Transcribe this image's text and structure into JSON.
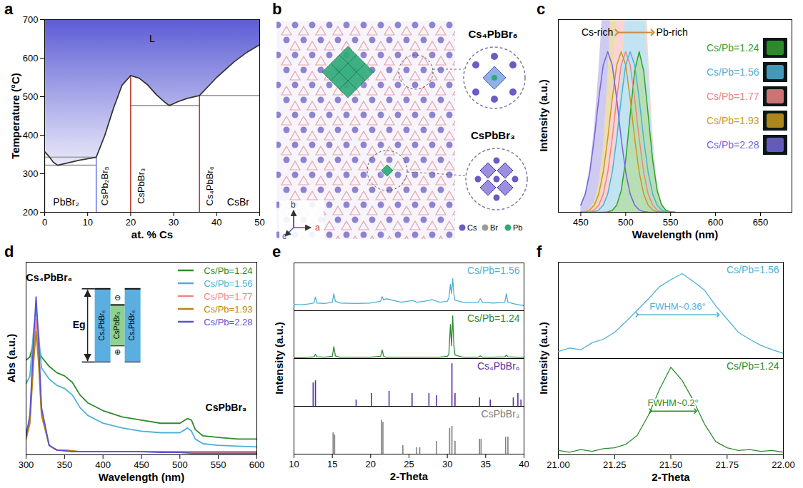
{
  "chart_data": [
    {
      "panel_label": "a",
      "type": "line",
      "xlabel": "at. % Cs",
      "ylabel": "Temperature (°C)",
      "xlim": [
        0,
        50
      ],
      "ylim": [
        200,
        700
      ],
      "xticks": [
        0,
        10,
        20,
        30,
        40,
        50
      ],
      "yticks": [
        200,
        300,
        400,
        500,
        600,
        700
      ],
      "color": "#333333",
      "liquidus": {
        "x": [
          0,
          1,
          2,
          3,
          5,
          8,
          12,
          14,
          16,
          18,
          20,
          22,
          24,
          26,
          28,
          29,
          31,
          33,
          36,
          40,
          44,
          47,
          50
        ],
        "y": [
          357,
          345,
          330,
          322,
          327,
          335,
          343,
          400,
          470,
          530,
          555,
          548,
          530,
          505,
          485,
          477,
          487,
          495,
          503,
          550,
          590,
          615,
          635
        ]
      },
      "lines": [
        {
          "x": [
            0,
            12
          ],
          "y": [
            343,
            343
          ],
          "color": "#9e9e9e"
        },
        {
          "x": [
            0,
            12
          ],
          "y": [
            322,
            322
          ],
          "color": "#9e9e9e"
        },
        {
          "x": [
            20,
            36
          ],
          "y": [
            477,
            477
          ],
          "color": "#9e9e9e"
        },
        {
          "x": [
            36,
            50
          ],
          "y": [
            503,
            503
          ],
          "color": "#9e9e9e"
        },
        {
          "x": [
            12,
            12
          ],
          "y": [
            200,
            343
          ],
          "color": "#6f7fe0"
        },
        {
          "x": [
            0,
            0
          ],
          "y": [
            200,
            357
          ],
          "color": "#6f7fe0"
        },
        {
          "x": [
            20,
            20
          ],
          "y": [
            200,
            555
          ],
          "color": "#c0392b"
        },
        {
          "x": [
            36,
            36
          ],
          "y": [
            200,
            503
          ],
          "color": "#c0392b"
        }
      ],
      "annotations": [
        {
          "text": "L",
          "x": 25,
          "y": 650
        },
        {
          "text": "PbBr₂",
          "x": 5,
          "y": 225
        },
        {
          "text": "CsBr",
          "x": 45,
          "y": 225
        }
      ],
      "rotated_annotations": [
        {
          "text": "CsPb₂Br₅",
          "x": 14,
          "y": 268
        },
        {
          "text": "CsPbBr₃",
          "x": 22.5,
          "y": 268
        },
        {
          "text": "Cs₄PbBr₆",
          "x": 38.5,
          "y": 268
        }
      ]
    },
    {
      "panel_label": "c",
      "type": "area",
      "xlabel": "Wavelength (nm)",
      "ylabel": "Intensity (a.u.)",
      "xlim": [
        425,
        685
      ],
      "ylim": [
        0,
        1.2
      ],
      "xticks": [
        450,
        500,
        550,
        600,
        650
      ],
      "tick_labels": "x",
      "legend": "top-right",
      "x": [
        450,
        455,
        460,
        465,
        470,
        475,
        480,
        485,
        490,
        495,
        500,
        505,
        510,
        515,
        520,
        525,
        530,
        535,
        540,
        545,
        550,
        555
      ],
      "series": [
        {
          "name": "Cs/Pb=1.24",
          "color": "#33a02c",
          "values": [
            0,
            0,
            0,
            0,
            0,
            0,
            0.002,
            0.011,
            0.044,
            0.135,
            0.325,
            0.607,
            0.882,
            1,
            0.882,
            0.607,
            0.325,
            0.135,
            0.044,
            0.011,
            0.002,
            0
          ]
        },
        {
          "name": "Cs/Pb=1.56",
          "color": "#4fb0d6",
          "values": [
            0,
            0,
            0.001,
            0.004,
            0.014,
            0.044,
            0.114,
            0.249,
            0.458,
            0.707,
            0.917,
            1,
            0.917,
            0.707,
            0.458,
            0.249,
            0.114,
            0.044,
            0.014,
            0.004,
            0.001,
            0
          ]
        },
        {
          "name": "Cs/Pb=1.77",
          "color": "#ef8585",
          "values": [
            0,
            0.001,
            0.004,
            0.014,
            0.044,
            0.114,
            0.249,
            0.458,
            0.707,
            0.917,
            1,
            0.917,
            0.707,
            0.458,
            0.249,
            0.114,
            0.044,
            0.014,
            0.004,
            0.001,
            0,
            0
          ]
        },
        {
          "name": "Cs/Pb=1.93",
          "color": "#c99a1e",
          "values": [
            0.001,
            0.004,
            0.014,
            0.044,
            0.114,
            0.249,
            0.458,
            0.707,
            0.917,
            1,
            0.917,
            0.707,
            0.458,
            0.249,
            0.114,
            0.044,
            0.014,
            0.004,
            0.001,
            0,
            0,
            0
          ]
        },
        {
          "name": "Cs/Pb=2.28",
          "color": "#7466d8",
          "values": [
            0.044,
            0.114,
            0.249,
            0.458,
            0.707,
            0.917,
            1,
            0.917,
            0.707,
            0.458,
            0.249,
            0.114,
            0.044,
            0.014,
            0.004,
            0.001,
            0,
            0,
            0,
            0,
            0,
            0
          ]
        }
      ],
      "annotations": [
        {
          "text": "Cs-rich",
          "x": 490,
          "y": 1.12
        },
        {
          "text": "Pb-rich",
          "x": 530,
          "y": 1.12
        }
      ]
    },
    {
      "panel_label": "d",
      "type": "line",
      "xlabel": "Wavelength (nm)",
      "ylabel": "Abs (a.u.)",
      "xlim": [
        300,
        600
      ],
      "ylim": [
        0,
        1.22
      ],
      "xticks": [
        300,
        350,
        400,
        450,
        500,
        550,
        600
      ],
      "tick_labels": "x",
      "legend": "top-right",
      "x": [
        300,
        305,
        310,
        313,
        316,
        320,
        330,
        340,
        350,
        360,
        370,
        380,
        400,
        425,
        450,
        475,
        500,
        510,
        515,
        520,
        530,
        550,
        575,
        600
      ],
      "series": [
        {
          "name": "Cs/Pb=1.24",
          "color": "#2e8b2e",
          "values": [
            0.6,
            0.62,
            0.72,
            0.76,
            0.68,
            0.62,
            0.56,
            0.52,
            0.5,
            0.46,
            0.38,
            0.33,
            0.28,
            0.24,
            0.22,
            0.2,
            0.2,
            0.23,
            0.22,
            0.16,
            0.12,
            0.11,
            0.1,
            0.1
          ]
        },
        {
          "name": "Cs/Pb=1.56",
          "color": "#4fb0d6",
          "values": [
            0.45,
            0.5,
            0.8,
            0.92,
            0.78,
            0.55,
            0.48,
            0.44,
            0.42,
            0.38,
            0.3,
            0.25,
            0.2,
            0.17,
            0.15,
            0.14,
            0.14,
            0.17,
            0.15,
            0.1,
            0.07,
            0.06,
            0.055,
            0.05
          ]
        },
        {
          "name": "Cs/Pb=1.77",
          "color": "#ef8585",
          "values": [
            0.1,
            0.22,
            0.65,
            0.86,
            0.65,
            0.27,
            0.06,
            0.03,
            0.03,
            0.025,
            0.02,
            0.02,
            0.02,
            0.02,
            0.02,
            0.02,
            0.015,
            0.015,
            0.015,
            0.015,
            0.015,
            0.015,
            0.015,
            0.015
          ]
        },
        {
          "name": "Cs/Pb=1.93",
          "color": "#b8860b",
          "values": [
            0.1,
            0.2,
            0.6,
            0.78,
            0.6,
            0.25,
            0.06,
            0.03,
            0.03,
            0.025,
            0.02,
            0.02,
            0.02,
            0.02,
            0.02,
            0.02,
            0.02,
            0.02,
            0.02,
            0.02,
            0.02,
            0.02,
            0.02,
            0.02
          ]
        },
        {
          "name": "Cs/Pb=2.28",
          "color": "#5b50d6",
          "values": [
            0.12,
            0.25,
            0.75,
            1.0,
            0.75,
            0.3,
            0.06,
            0.03,
            0.025,
            0.02,
            0.02,
            0.02,
            0.02,
            0.02,
            0.02,
            0.015,
            0.015,
            0.012,
            0.01,
            0.01,
            0.01,
            0.01,
            0.01,
            0.01
          ]
        }
      ],
      "annotations": [
        {
          "text": "Cs₄PbBr₆",
          "x": 330,
          "y": 1.12
        },
        {
          "text": "CsPbBr₃",
          "x": 560,
          "y": 0.3
        }
      ],
      "inset": {
        "labels": [
          "Cs₄PbBr₆",
          "CsPbBr₃",
          "Cs₄PbBr₆"
        ],
        "energy_label": "Eg",
        "electron": "⊖",
        "hole": "⊕"
      }
    },
    {
      "panel_label": "e",
      "type": "line",
      "xlabel": "2-Theta",
      "ylabel": "Intensity (a.u.)",
      "xlim": [
        10,
        40
      ],
      "ylim": [
        0,
        1.12
      ],
      "xticks": [
        10,
        15,
        20,
        25,
        30,
        35,
        40
      ],
      "tick_labels": "x",
      "series": [
        {
          "name": "Cs/Pb=1.56",
          "color": "#4fb0d6",
          "type": "line",
          "x": [
            10,
            11,
            12,
            12.6,
            12.8,
            13,
            14,
            15,
            15.2,
            15.4,
            16,
            18,
            20,
            21.3,
            21.5,
            21.7,
            22,
            24,
            25.5,
            26,
            27,
            28,
            29,
            30,
            30.2,
            30.4,
            30.55,
            30.7,
            30.85,
            31,
            32,
            34,
            34.3,
            34.6,
            36,
            37.5,
            37.7,
            37.9,
            39,
            40
          ],
          "values": [
            0.15,
            0.14,
            0.16,
            0.18,
            0.32,
            0.18,
            0.17,
            0.2,
            0.4,
            0.22,
            0.18,
            0.17,
            0.18,
            0.22,
            0.33,
            0.25,
            0.28,
            0.2,
            0.24,
            0.2,
            0.22,
            0.26,
            0.2,
            0.22,
            0.3,
            0.62,
            0.4,
            0.75,
            0.38,
            0.25,
            0.2,
            0.2,
            0.28,
            0.2,
            0.18,
            0.2,
            0.4,
            0.2,
            0.15,
            0.12
          ]
        },
        {
          "name": "Cs/Pb=1.24",
          "color": "#2e8b2e",
          "type": "line",
          "x": [
            10,
            11,
            12,
            12.6,
            12.8,
            13,
            14,
            15,
            15.2,
            15.4,
            16,
            18,
            20,
            21.3,
            21.5,
            21.7,
            22,
            24,
            25.5,
            26,
            27,
            28,
            29,
            30,
            30.2,
            30.4,
            30.55,
            30.7,
            30.85,
            31,
            32,
            34,
            34.3,
            34.6,
            36,
            37.5,
            37.7,
            37.9,
            39,
            40
          ],
          "values": [
            0.02,
            0.02,
            0.03,
            0.04,
            0.1,
            0.04,
            0.03,
            0.05,
            0.28,
            0.06,
            0.03,
            0.03,
            0.03,
            0.05,
            0.2,
            0.05,
            0.03,
            0.03,
            0.03,
            0.03,
            0.03,
            0.03,
            0.03,
            0.05,
            0.1,
            0.8,
            0.3,
            1,
            0.3,
            0.08,
            0.03,
            0.03,
            0.06,
            0.03,
            0.03,
            0.04,
            0.08,
            0.04,
            0.03,
            0.03
          ]
        },
        {
          "name": "Cs₄PbBr₆",
          "color": "#5b2c9e",
          "type": "bar",
          "x": [
            12.5,
            12.8,
            18.1,
            20.1,
            22.4,
            25.4,
            27.6,
            28.6,
            30.6,
            31,
            34.2,
            35.6,
            38.6,
            39.2,
            39.6
          ],
          "values": [
            0.55,
            0.6,
            0.15,
            0.3,
            0.35,
            0.3,
            0.3,
            0.25,
            1,
            0.3,
            0.2,
            0.15,
            0.2,
            0.3,
            0.15
          ]
        },
        {
          "name": "CsPbBr₃",
          "color": "#808080",
          "type": "bar",
          "x": [
            15.1,
            15.3,
            21.4,
            21.6,
            24.2,
            26,
            26.4,
            28.6,
            30.3,
            30.6,
            31,
            34.2,
            34.4,
            37.6,
            37.9
          ],
          "values": [
            0.5,
            0.45,
            0.8,
            0.75,
            0.2,
            0.15,
            0.15,
            0.3,
            0.6,
            0.65,
            0.3,
            0.35,
            0.35,
            0.4,
            0.4
          ]
        }
      ]
    },
    {
      "panel_label": "f",
      "type": "line",
      "xlabel": "2-Theta",
      "ylabel": "Intensity (a.u.)",
      "xlim": [
        21,
        22
      ],
      "ylim": [
        0,
        1.1
      ],
      "xticks": [
        {
          "value": 21,
          "label": "21.00"
        },
        21.25,
        {
          "value": 21.5,
          "label": "21.50"
        },
        21.75,
        {
          "value": 22,
          "label": "22.00"
        }
      ],
      "tick_labels": "x",
      "series": [
        {
          "name": "Cs/Pb=1.56",
          "color": "#4fb0d6",
          "type": "line",
          "x": [
            21,
            21.05,
            21.1,
            21.15,
            21.2,
            21.25,
            21.3,
            21.35,
            21.4,
            21.45,
            21.5,
            21.55,
            21.6,
            21.65,
            21.7,
            21.75,
            21.8,
            21.85,
            21.9,
            21.95,
            22
          ],
          "values": [
            0.08,
            0.12,
            0.1,
            0.18,
            0.22,
            0.3,
            0.42,
            0.55,
            0.68,
            0.82,
            0.9,
            0.97,
            0.88,
            0.78,
            0.6,
            0.45,
            0.3,
            0.22,
            0.15,
            0.1,
            0.06
          ],
          "fwhm": {
            "x": [
              21.35,
              21.71
            ],
            "y": 0.5,
            "label": "FWHM~0.36°"
          }
        },
        {
          "name": "Cs/Pb=1.24",
          "color": "#2e8b2e",
          "type": "line",
          "x": [
            21,
            21.05,
            21.1,
            21.15,
            21.2,
            21.25,
            21.3,
            21.35,
            21.4,
            21.45,
            21.5,
            21.55,
            21.6,
            21.65,
            21.7,
            21.75,
            21.8,
            21.85,
            21.9,
            21.95,
            22
          ],
          "values": [
            0.05,
            0.03,
            0.06,
            0.04,
            0.07,
            0.08,
            0.12,
            0.22,
            0.45,
            0.75,
            1,
            0.85,
            0.62,
            0.35,
            0.15,
            0.08,
            0.05,
            0.06,
            0.04,
            0.05,
            0.03
          ],
          "fwhm": {
            "x": [
              21.41,
              21.61
            ],
            "y": 0.5,
            "label": "FWHM~0.2°"
          }
        }
      ]
    }
  ],
  "diagram": {
    "panel_label": "b",
    "structure_labels": [
      "Cs₄PbBr₆",
      "CsPbBr₃"
    ],
    "atoms": [
      {
        "name": "Cs",
        "color": "#6b5bc4"
      },
      {
        "name": "Br",
        "color": "#9a9a9a"
      },
      {
        "name": "Pb",
        "color": "#2eaa7a"
      }
    ],
    "axes": [
      "a",
      "b",
      "c"
    ]
  }
}
